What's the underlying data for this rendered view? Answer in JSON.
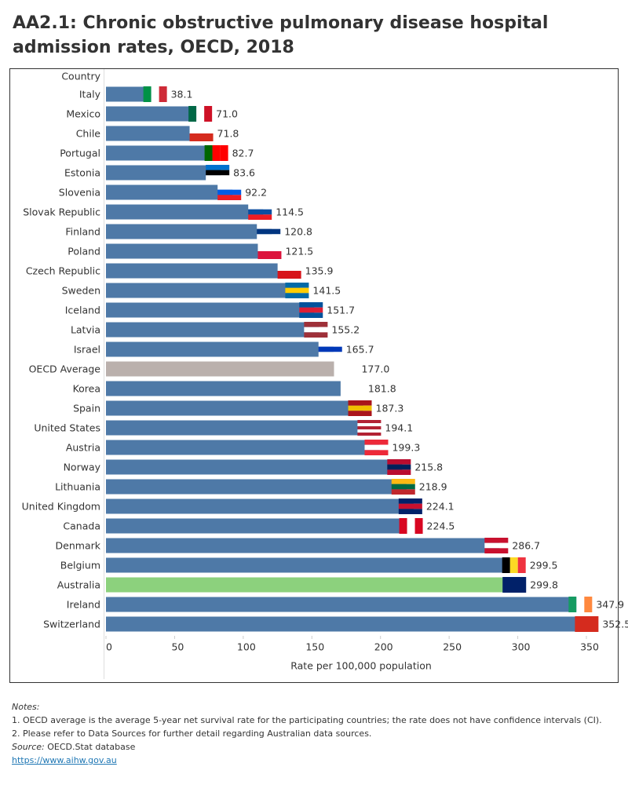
{
  "chart_data": {
    "type": "bar",
    "orientation": "horizontal",
    "title": "AA2.1: Chronic obstructive pulmonary disease hospital admission rates, OECD, 2018",
    "category_axis_label": "Country",
    "x_axis_label": "Rate per 100,000 population",
    "categories": [
      "Italy",
      "Mexico",
      "Chile",
      "Portugal",
      "Estonia",
      "Slovenia",
      "Slovak Republic",
      "Finland",
      "Poland",
      "Czech Republic",
      "Sweden",
      "Iceland",
      "Latvia",
      "Israel",
      "OECD Average",
      "Korea",
      "Spain",
      "United States",
      "Austria",
      "Norway",
      "Lithuania",
      "United Kingdom",
      "Canada",
      "Denmark",
      "Belgium",
      "Australia",
      "Ireland",
      "Switzerland"
    ],
    "values": [
      38.1,
      71,
      71.8,
      82.7,
      83.6,
      92.2,
      114.5,
      120.8,
      121.5,
      135.9,
      141.5,
      151.7,
      155.2,
      165.7,
      177,
      181.8,
      187.3,
      194.1,
      199.3,
      215.8,
      218.9,
      224.1,
      224.5,
      286.7,
      299.5,
      299.8,
      347.9,
      352.5
    ],
    "value_labels": [
      "38.1",
      "71.0",
      "71.8",
      "82.7",
      "83.6",
      "92.2",
      "114.5",
      "120.8",
      "121.5",
      "135.9",
      "141.5",
      "151.7",
      "155.2",
      "165.7",
      "177.0",
      "181.8",
      "187.3",
      "194.1",
      "199.3",
      "215.8",
      "218.9",
      "224.1",
      "224.5",
      "286.7",
      "299.5",
      "299.8",
      "347.9",
      "352.5"
    ],
    "color": "#4e79a7",
    "highlight_colors": {
      "OECD Average": "#bab0ac",
      "Australia": "#8cd17d"
    },
    "xlim": [
      0,
      350
    ],
    "xticks": [
      0,
      50,
      100,
      150,
      200,
      250,
      300,
      350
    ]
  },
  "notes": {
    "heading": "Notes:",
    "lines": [
      "1. OECD average is the average 5-year net survival rate for the participating countries; the rate does not have confidence intervals (CI).",
      "2. Please refer to Data Sources for further detail regarding Australian data sources."
    ],
    "source_label": "Source:",
    "source": "OECD.Stat database",
    "link": "https://www.aihw.gov.au"
  }
}
